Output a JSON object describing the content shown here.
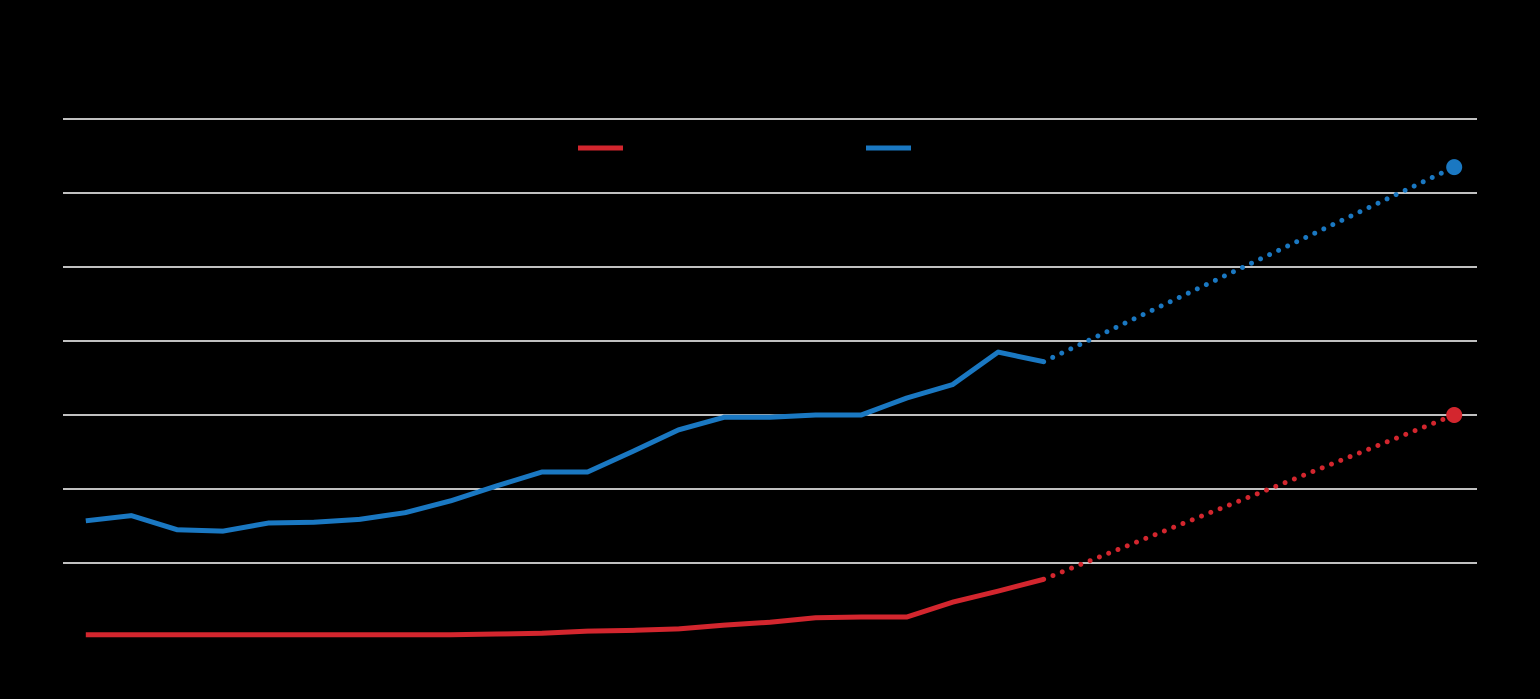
{
  "chart_data": {
    "type": "line",
    "x": [
      0,
      1,
      2,
      3,
      4,
      5,
      6,
      7,
      8,
      9,
      10,
      11,
      12,
      13,
      14,
      15,
      16,
      17,
      18,
      19,
      20,
      21,
      30
    ],
    "xlim": [
      -0.5,
      30.5
    ],
    "ylim": [
      0,
      7
    ],
    "yticks": [
      1,
      2,
      3,
      4,
      5,
      6,
      7
    ],
    "grid": true,
    "legend": "top",
    "series": [
      {
        "color": "#d3262e",
        "dotted_from_index": 21,
        "end_marker": true,
        "values": [
          0.03,
          0.03,
          0.03,
          0.03,
          0.03,
          0.03,
          0.03,
          0.03,
          0.03,
          0.04,
          0.05,
          0.08,
          0.09,
          0.11,
          0.16,
          0.2,
          0.26,
          0.27,
          0.27,
          0.47,
          0.62,
          0.78,
          3.0
        ]
      },
      {
        "color": "#1a78c2",
        "dotted_from_index": 21,
        "end_marker": true,
        "values": [
          1.57,
          1.64,
          1.45,
          1.43,
          1.54,
          1.55,
          1.59,
          1.68,
          1.84,
          2.04,
          2.23,
          2.23,
          2.51,
          2.8,
          2.97,
          2.97,
          3.0,
          3.0,
          3.23,
          3.41,
          3.85,
          3.72,
          6.35
        ]
      }
    ]
  }
}
